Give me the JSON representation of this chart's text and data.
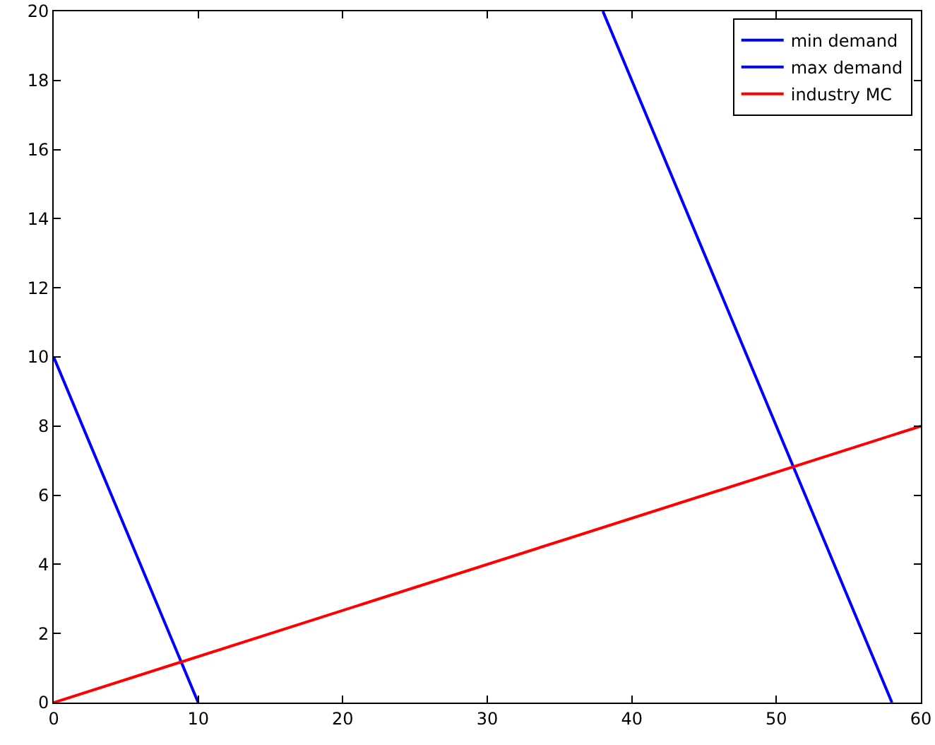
{
  "chart_data": {
    "type": "line",
    "xlim": [
      0,
      60
    ],
    "ylim": [
      0,
      20
    ],
    "xticks": [
      0,
      10,
      20,
      30,
      40,
      50,
      60
    ],
    "yticks": [
      0,
      2,
      4,
      6,
      8,
      10,
      12,
      14,
      16,
      18,
      20
    ],
    "grid": false,
    "legend": "top right",
    "marker": "none",
    "line_style": "solid",
    "series": [
      {
        "name": "min demand",
        "color": "#0000ff",
        "x": [
          0,
          10
        ],
        "values": [
          10,
          0
        ]
      },
      {
        "name": "max demand",
        "color": "#0000ff",
        "x": [
          38,
          58
        ],
        "values": [
          20,
          0
        ]
      },
      {
        "name": "industry MC",
        "color": "#ff0000",
        "x": [
          0,
          60
        ],
        "values": [
          0,
          8
        ]
      }
    ]
  }
}
